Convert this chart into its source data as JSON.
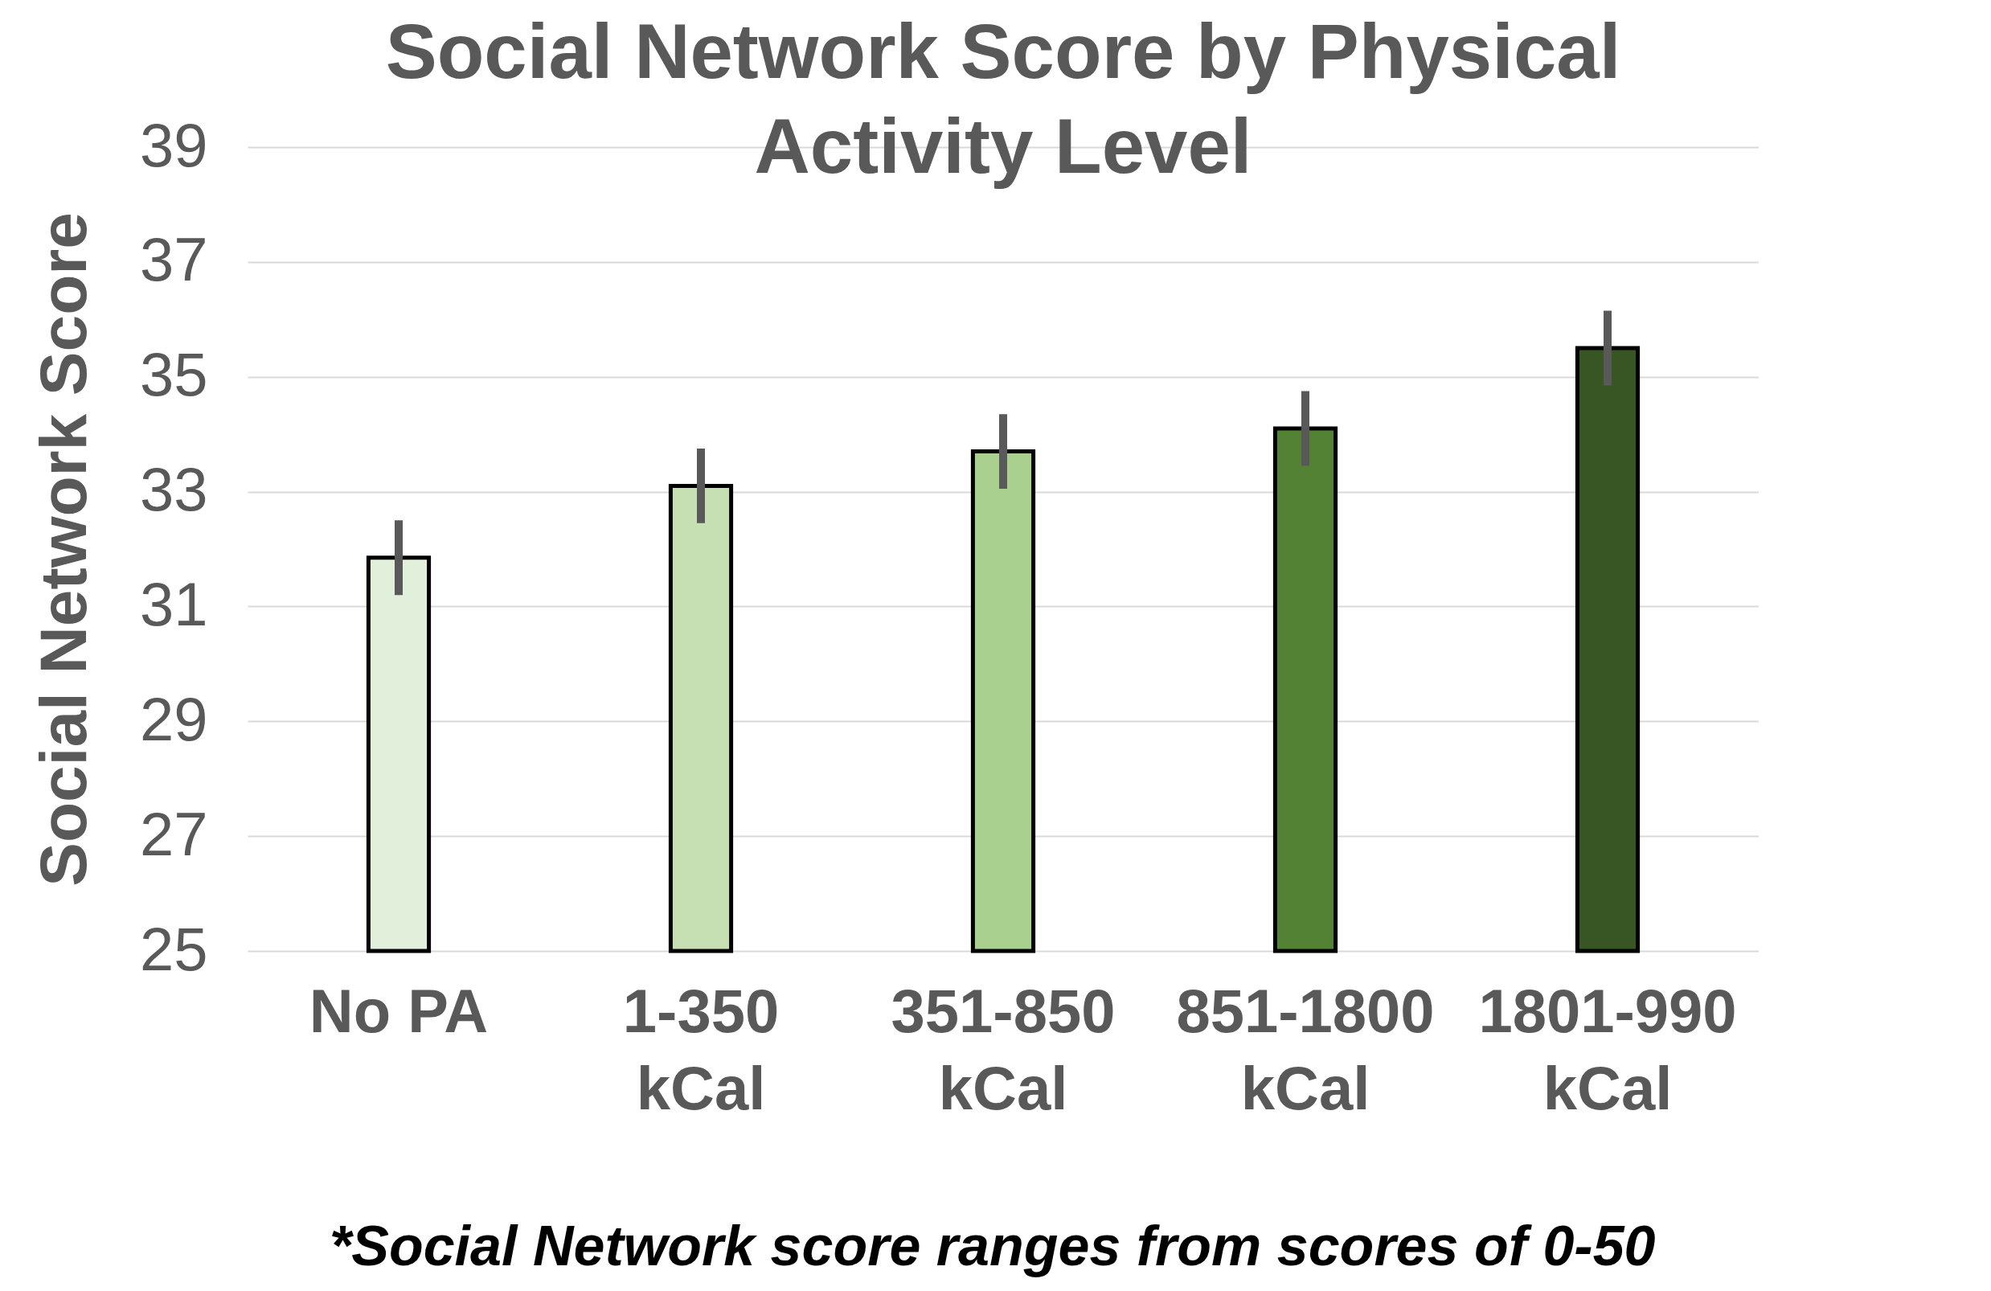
{
  "chart_data": {
    "type": "bar",
    "title": "Social Network Score by Physical Activity Level",
    "ylabel": "Social Network Score",
    "categories": [
      "No PA",
      "1-350\nkCal",
      "351-850\nkCal",
      "851-1800\nkCal",
      "1801-990\nkCal"
    ],
    "values": [
      31.85,
      33.1,
      33.7,
      34.1,
      35.5
    ],
    "errors": [
      0.65,
      0.65,
      0.65,
      0.65,
      0.65
    ],
    "colors": [
      "#e2efda",
      "#c6e0b4",
      "#a9d08e",
      "#548235",
      "#375623"
    ],
    "ylim": [
      25,
      39
    ],
    "yticks": [
      25,
      27,
      29,
      31,
      33,
      35,
      37,
      39
    ],
    "grid": "y",
    "annotations": [
      "*Social Network score ranges from scores of 0-50"
    ]
  }
}
